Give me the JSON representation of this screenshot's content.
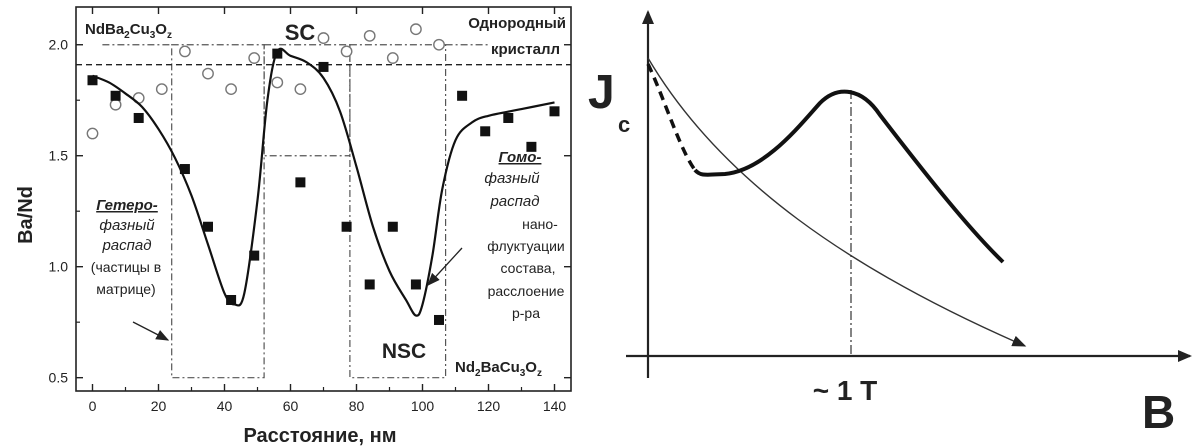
{
  "chart_data": [
    {
      "type": "scatter",
      "xlabel": "Расстояние, нм",
      "ylabel": "Ba/Nd",
      "xlim": [
        -5,
        145
      ],
      "ylim": [
        0.44,
        2.17
      ],
      "xticks": [
        0,
        20,
        40,
        60,
        80,
        100,
        120,
        140
      ],
      "yticks": [
        0.5,
        1.0,
        1.5,
        2.0
      ],
      "xtick_labels": [
        "0",
        "20",
        "40",
        "60",
        "80",
        "100",
        "120",
        "140"
      ],
      "ytick_labels": [
        "0.5",
        "1.0",
        "1.5",
        "2.0"
      ],
      "reference_line": {
        "y": 1.91,
        "style": "dashed"
      },
      "series": [
        {
          "marker": "open-circle",
          "x": [
            0,
            7,
            14,
            21,
            28,
            35,
            42,
            49,
            56,
            63,
            70,
            77,
            84,
            91,
            98,
            105
          ],
          "y": [
            1.6,
            1.73,
            1.76,
            1.8,
            1.97,
            1.87,
            1.8,
            1.94,
            1.83,
            1.8,
            2.03,
            1.97,
            2.04,
            1.94,
            2.07,
            2.0
          ]
        },
        {
          "marker": "filled-square",
          "x": [
            0,
            7,
            14,
            28,
            35,
            42,
            49,
            56,
            63,
            70,
            77,
            84,
            91,
            98,
            105,
            112,
            119,
            126,
            133,
            140
          ],
          "y": [
            1.84,
            1.77,
            1.67,
            1.44,
            1.18,
            0.85,
            1.05,
            1.96,
            1.38,
            1.9,
            1.18,
            0.92,
            1.18,
            0.92,
            0.76,
            1.77,
            1.61,
            1.67,
            1.54,
            1.7
          ]
        },
        {
          "marker": "line",
          "x": [
            0,
            5,
            10,
            15,
            20,
            25,
            30,
            35,
            40,
            43,
            46,
            50,
            53,
            56,
            60,
            65,
            70,
            75,
            80,
            85,
            90,
            95,
            98,
            100,
            103,
            106,
            110,
            115,
            120,
            130,
            140
          ],
          "y": [
            1.86,
            1.83,
            1.78,
            1.72,
            1.62,
            1.49,
            1.32,
            1.1,
            0.88,
            0.83,
            0.88,
            1.3,
            1.75,
            1.97,
            1.95,
            1.92,
            1.85,
            1.7,
            1.45,
            1.18,
            0.98,
            0.85,
            0.78,
            0.83,
            1.05,
            1.35,
            1.57,
            1.65,
            1.68,
            1.71,
            1.74
          ]
        }
      ],
      "regions": [
        {
          "x": [
            24,
            52
          ],
          "y": [
            0.5,
            2.0
          ]
        },
        {
          "x": [
            52,
            78
          ],
          "y": [
            1.5,
            2.0
          ]
        },
        {
          "x": [
            78,
            107
          ],
          "y": [
            0.5,
            2.0
          ]
        }
      ],
      "annotations": {
        "top_left_pre": "NdBa",
        "top_left_sub1": "2",
        "top_left_mid": "Cu",
        "top_left_sub2": "3",
        "top_left_end": "O",
        "top_left_subz": "z",
        "sc": "SC",
        "top_right_1": "Однородный",
        "top_right_2": "кристалл",
        "hetero_1": "Гетеро-",
        "hetero_2": "фазный",
        "hetero_3": "распад",
        "hetero_4": "(частицы в",
        "hetero_5": "матрице)",
        "homo_1": "Гомо-",
        "homo_2": "фазный",
        "homo_3": "распад",
        "homo_4": "нано-",
        "homo_5": "флуктуации",
        "homo_6": "состава,",
        "homo_7": "расслоение",
        "homo_8": "р-ра",
        "nsc": "NSC",
        "bottom_right_pre": "Nd",
        "bottom_right_sub1": "2",
        "bottom_right_mid": "BaCu",
        "bottom_right_sub2": "3",
        "bottom_right_end": "O",
        "bottom_right_subz": "z"
      }
    },
    {
      "type": "line",
      "ylabel_main": "J",
      "ylabel_sub": "c",
      "xlabel": "B",
      "marker_label": "~ 1 T",
      "note": "Schematic: thin monotonic decay curve; bold curve with peak effect near ~1 T; dashed initial segment"
    }
  ]
}
